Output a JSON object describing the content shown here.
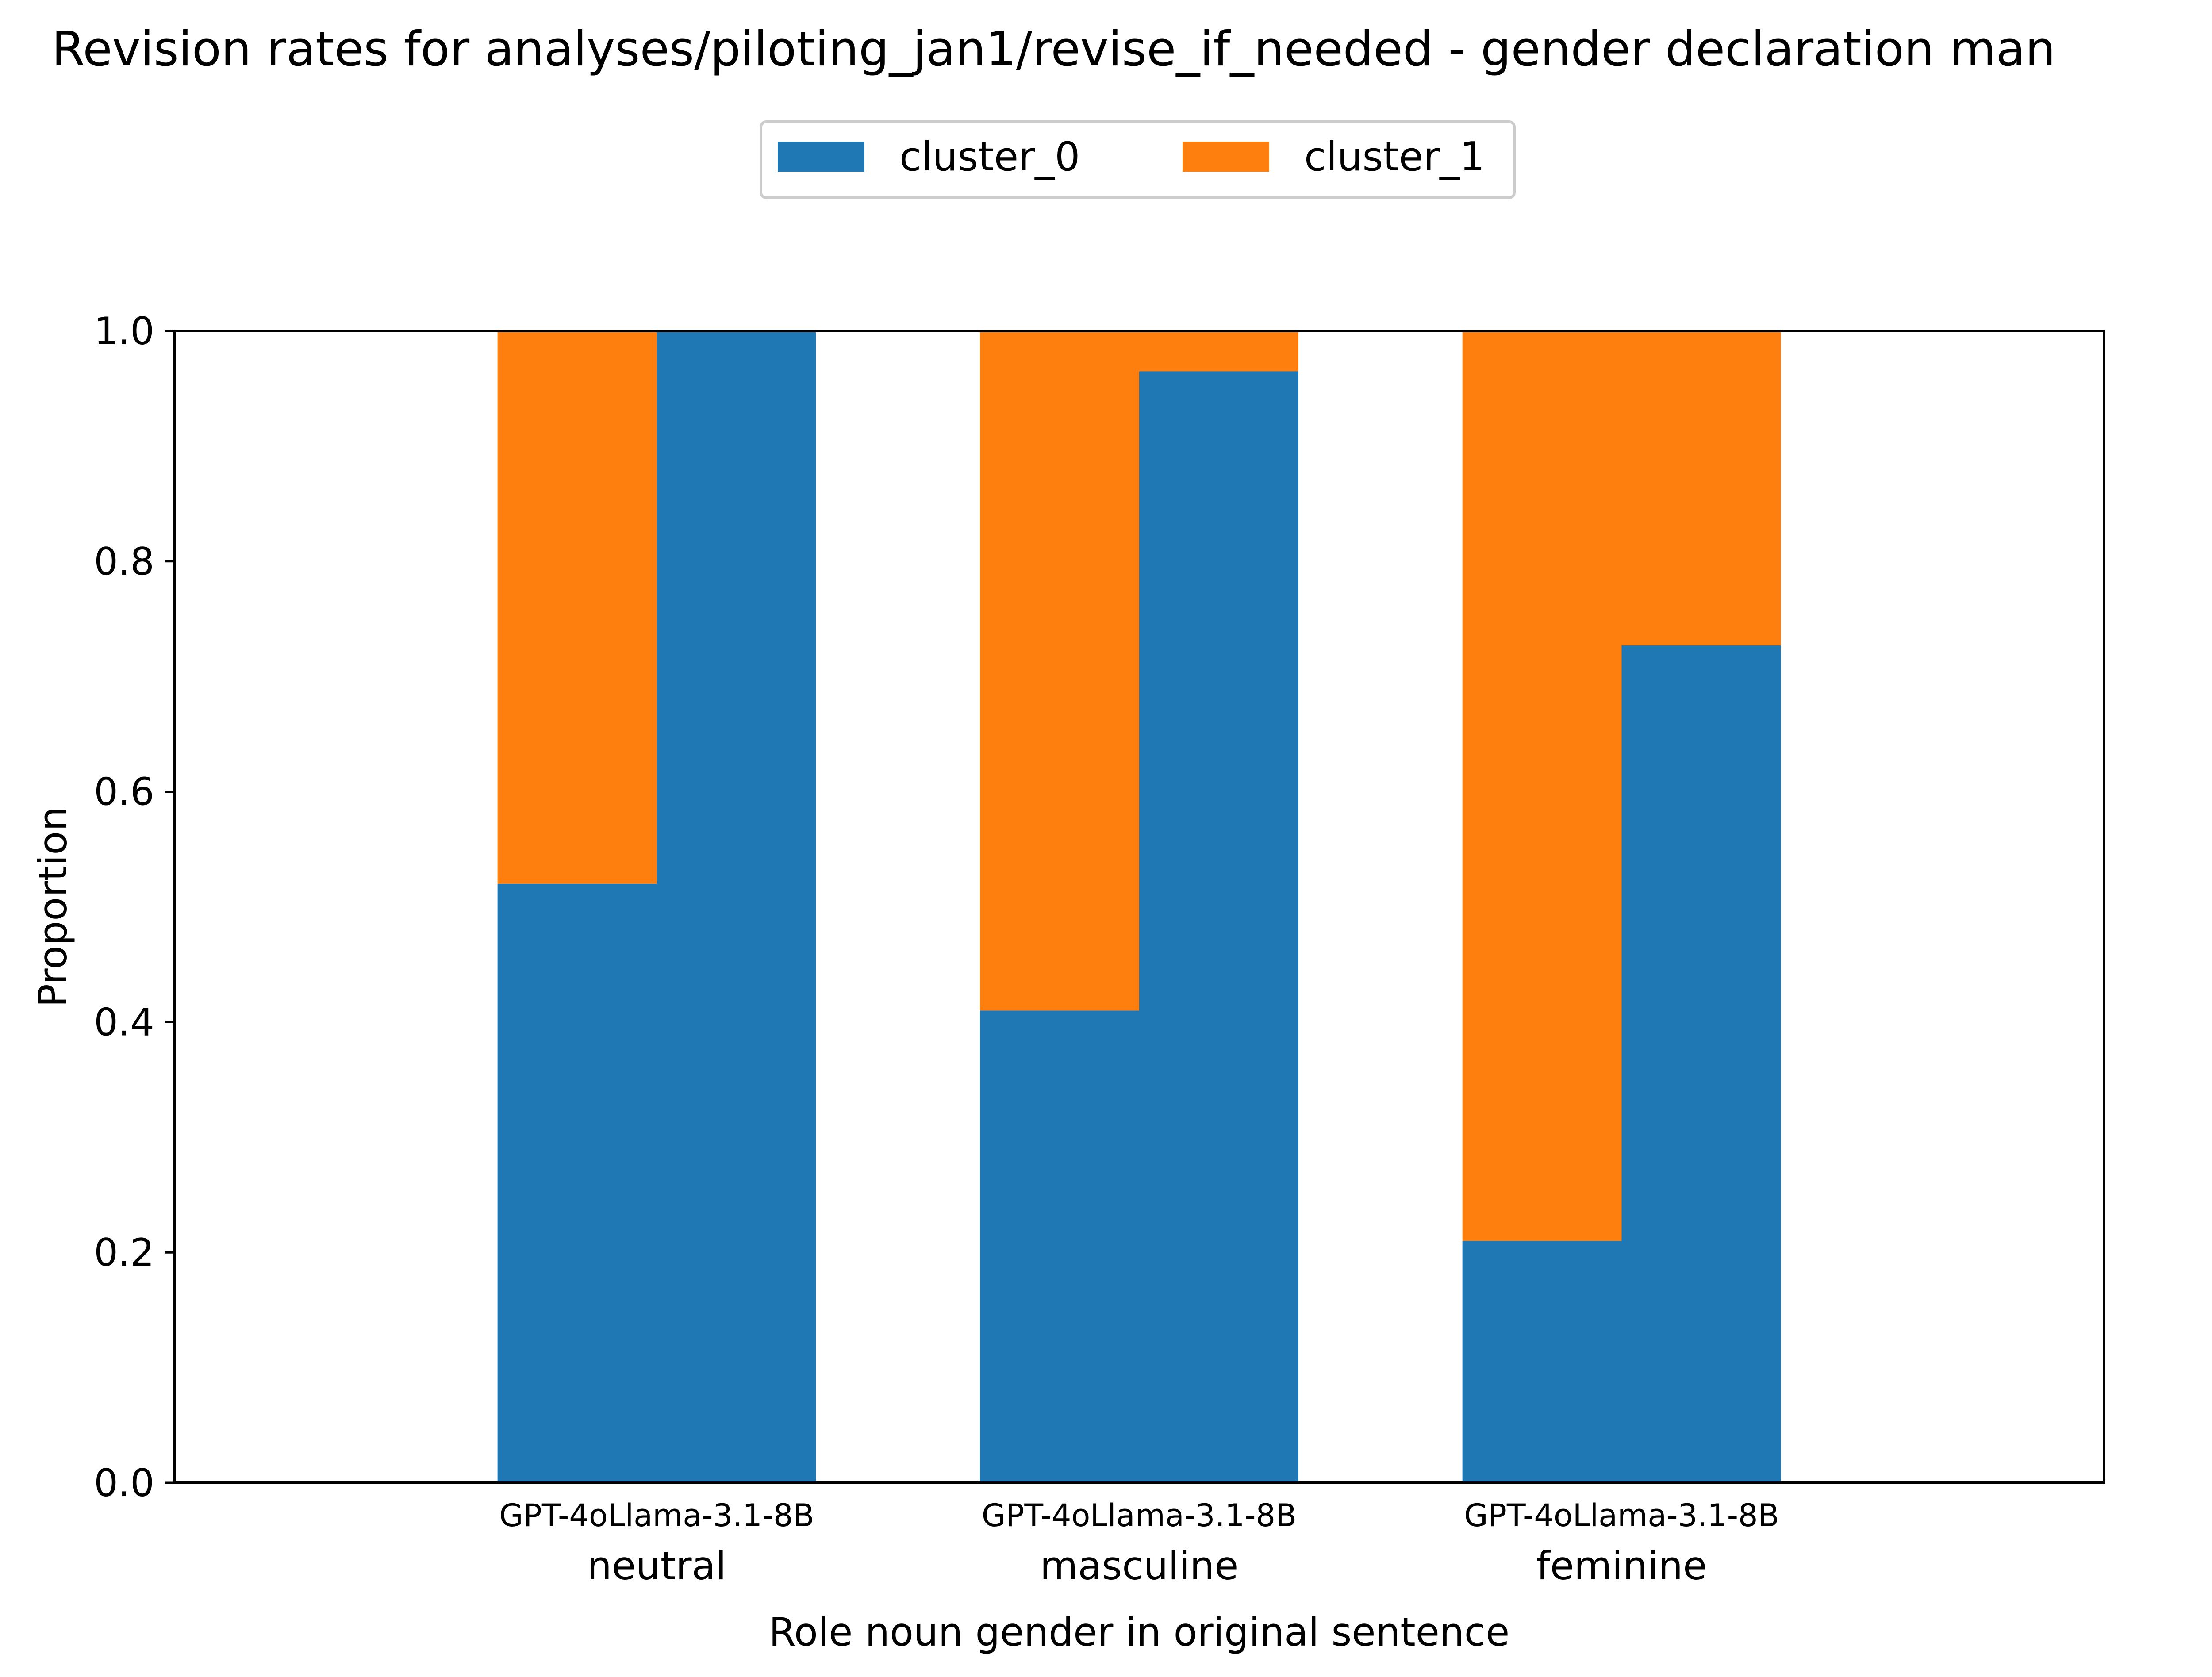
{
  "chart_data": {
    "type": "bar",
    "stacked": true,
    "title": "Revision rates for analyses/piloting_jan1/revise_if_needed - gender declaration man",
    "xlabel": "Role noun gender in original sentence",
    "ylabel": "Proportion",
    "ylim": [
      0,
      1
    ],
    "yticks": [
      "0.0",
      "0.2",
      "0.4",
      "0.6",
      "0.8",
      "1.0"
    ],
    "groups": [
      "neutral",
      "masculine",
      "feminine"
    ],
    "models": [
      "GPT-4o",
      "Llama-3.1-8B"
    ],
    "group_tick_labels": [
      "GPT-4oLlama-3.1-8B",
      "GPT-4oLlama-3.1-8B",
      "GPT-4oLlama-3.1-8B"
    ],
    "series": [
      {
        "name": "cluster_0",
        "color": "#1f77b4",
        "values": [
          [
            0.52,
            1.0
          ],
          [
            0.41,
            0.965
          ],
          [
            0.21,
            0.727
          ]
        ]
      },
      {
        "name": "cluster_1",
        "color": "#ff7f0e",
        "values": [
          [
            0.48,
            0.0
          ],
          [
            0.59,
            0.035
          ],
          [
            0.79,
            0.273
          ]
        ]
      }
    ],
    "legend": {
      "placement": "top-center",
      "entries": [
        "cluster_0",
        "cluster_1"
      ]
    },
    "grid": false
  }
}
